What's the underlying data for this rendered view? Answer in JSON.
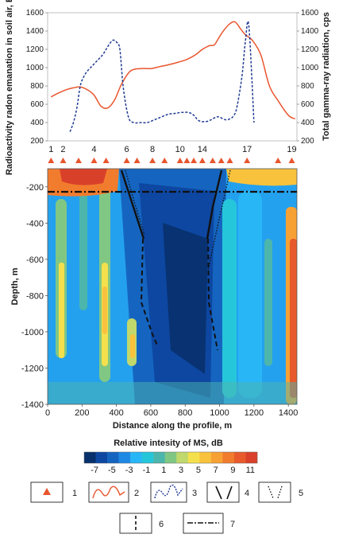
{
  "chart_data": [
    {
      "type": "line",
      "xlim": [
        0,
        1450
      ],
      "series": [
        {
          "axis": "left",
          "color": "#e8552d",
          "x": [
            20,
            60,
            110,
            150,
            190,
            230,
            270,
            310,
            350,
            390,
            430,
            480,
            540,
            600,
            650,
            700,
            760,
            810,
            860,
            900,
            940,
            970,
            1000,
            1030,
            1060,
            1090,
            1120,
            1150,
            1190,
            1240,
            1290,
            1340,
            1400,
            1440
          ],
          "values": [
            680,
            720,
            760,
            780,
            790,
            760,
            700,
            580,
            560,
            650,
            820,
            960,
            990,
            990,
            1010,
            1030,
            1060,
            1090,
            1140,
            1200,
            1240,
            1250,
            1340,
            1420,
            1480,
            1500,
            1430,
            1360,
            1300,
            1140,
            800,
            640,
            480,
            440
          ]
        },
        {
          "axis": "right",
          "color": "#1f3a93",
          "x": [
            130,
            150,
            170,
            190,
            210,
            230,
            260,
            290,
            320,
            340,
            360,
            380,
            400,
            420,
            440,
            470,
            500,
            540,
            580,
            620,
            660,
            700,
            740,
            780,
            820,
            850,
            880,
            920,
            950,
            980,
            1000,
            1020,
            1040,
            1060,
            1080,
            1100,
            1130,
            1150,
            1170,
            1200
          ],
          "values": [
            300,
            400,
            560,
            800,
            900,
            960,
            1020,
            1080,
            1140,
            1200,
            1260,
            1300,
            1280,
            1200,
            780,
            460,
            400,
            400,
            400,
            430,
            460,
            490,
            500,
            510,
            510,
            480,
            420,
            410,
            430,
            460,
            460,
            440,
            430,
            440,
            470,
            560,
            900,
            1280,
            1460,
            400
          ]
        }
      ],
      "ylabel_left": "Radioactivity radon emanation in soil air, Bq/m³",
      "ylabel_right": "Total gamma-ray radiation, cps",
      "ylim_left": [
        200,
        1600
      ],
      "ylim_right": [
        200,
        1600
      ],
      "yticks_left": [
        "1600",
        "1400",
        "1200",
        "1000",
        "800",
        "600",
        "400",
        "200"
      ],
      "yticks_right": [
        "1600",
        "1400",
        "1200",
        "1000",
        "800",
        "600",
        "400",
        "200"
      ],
      "station_labels": [
        "1",
        "2",
        "4",
        "6",
        "8",
        "10",
        "14",
        "17",
        "19"
      ],
      "grid": false
    },
    {
      "type": "heatmap",
      "xlabel": "Distance along the profile, m",
      "ylabel": "Depth, m",
      "xlim": [
        0,
        1450
      ],
      "ylim": [
        -1400,
        -100
      ],
      "xticks": [
        "0",
        "200",
        "400",
        "600",
        "800",
        "1000",
        "1200",
        "1400"
      ],
      "yticks": [
        "-200",
        "-400",
        "-600",
        "-800",
        "-1000",
        "-1200",
        "-1400"
      ],
      "colorbar": {
        "title": "Relative intesity of MS, dB",
        "tick_labels": [
          "-7",
          "-5",
          "-3",
          "-1",
          "1",
          "3",
          "5",
          "7",
          "9",
          "11"
        ],
        "colors": [
          "#08306b",
          "#0d47a1",
          "#1565c0",
          "#1e88e5",
          "#29b6f6",
          "#26c6da",
          "#4db6ac",
          "#81c784",
          "#c0d86c",
          "#f4e04d",
          "#f9c23c",
          "#f7a134",
          "#f27c2e",
          "#e85a2b",
          "#d9402a"
        ]
      },
      "values_description": "",
      "station_x": [
        20,
        90,
        180,
        270,
        340,
        460,
        520,
        610,
        680,
        770,
        810,
        850,
        900,
        960,
        1010,
        1060,
        1160,
        1340,
        1420
      ],
      "station_color": "#e8552d"
    }
  ],
  "legend": {
    "items": [
      {
        "num": "1"
      },
      {
        "num": "2"
      },
      {
        "num": "3"
      },
      {
        "num": "4"
      },
      {
        "num": "5"
      },
      {
        "num": "6"
      },
      {
        "num": "7"
      }
    ]
  }
}
